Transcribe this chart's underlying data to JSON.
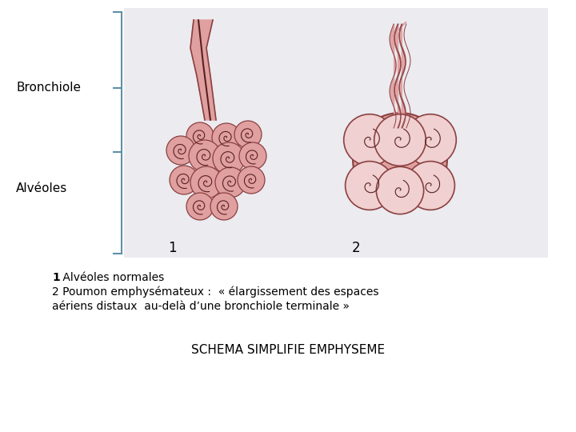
{
  "background_color": "#ffffff",
  "image_bg_color": "#ebebf0",
  "label_bronchiole": "Bronchiole",
  "label_alveoles": "Alvéoles",
  "num1": "1",
  "num2": "2",
  "text_line1_bold": "1",
  "text_line1_rest": " Alvéoles normales",
  "text_line2": "2 Poumon emphysémateux :  « élargissement des espaces",
  "text_line3": "aériens distaux  au-delà d’une bronchiole terminale »",
  "title": "SCHEMA SIMPLIFIE EMPHYSEME",
  "title_fontsize": 11,
  "label_fontsize": 11,
  "text_fontsize": 10,
  "bracket_color": "#6090a8",
  "pink_fill": "#e0a0a0",
  "pink_medium": "#d08080",
  "pink_light": "#f0d0d0",
  "dark_outline": "#5a2020",
  "line_color": "#8b4040"
}
